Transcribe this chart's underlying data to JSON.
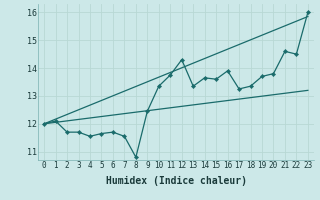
{
  "title": "",
  "xlabel": "Humidex (Indice chaleur)",
  "xlim": [
    -0.5,
    23.5
  ],
  "ylim": [
    10.7,
    16.3
  ],
  "xticks": [
    0,
    1,
    2,
    3,
    4,
    5,
    6,
    7,
    8,
    9,
    10,
    11,
    12,
    13,
    14,
    15,
    16,
    17,
    18,
    19,
    20,
    21,
    22,
    23
  ],
  "yticks": [
    11,
    12,
    13,
    14,
    15,
    16
  ],
  "bg_color": "#cce8e8",
  "line_color": "#1a6b6b",
  "grid_color": "#b8d8d4",
  "data_x": [
    0,
    1,
    2,
    3,
    4,
    5,
    6,
    7,
    8,
    9,
    10,
    11,
    12,
    13,
    14,
    15,
    16,
    17,
    18,
    19,
    20,
    21,
    22,
    23
  ],
  "data_y": [
    12.0,
    12.1,
    11.7,
    11.7,
    11.55,
    11.65,
    11.7,
    11.55,
    10.8,
    12.45,
    13.35,
    13.75,
    14.3,
    13.35,
    13.65,
    13.6,
    13.9,
    13.25,
    13.35,
    13.7,
    13.8,
    14.6,
    14.5,
    16.0
  ],
  "trend1_x": [
    0,
    23
  ],
  "trend1_y": [
    12.0,
    15.85
  ],
  "trend2_x": [
    0,
    23
  ],
  "trend2_y": [
    12.0,
    13.2
  ],
  "text_color": "#1a3a3a",
  "xlabel_fontsize": 7,
  "tick_fontsize": 5.5
}
